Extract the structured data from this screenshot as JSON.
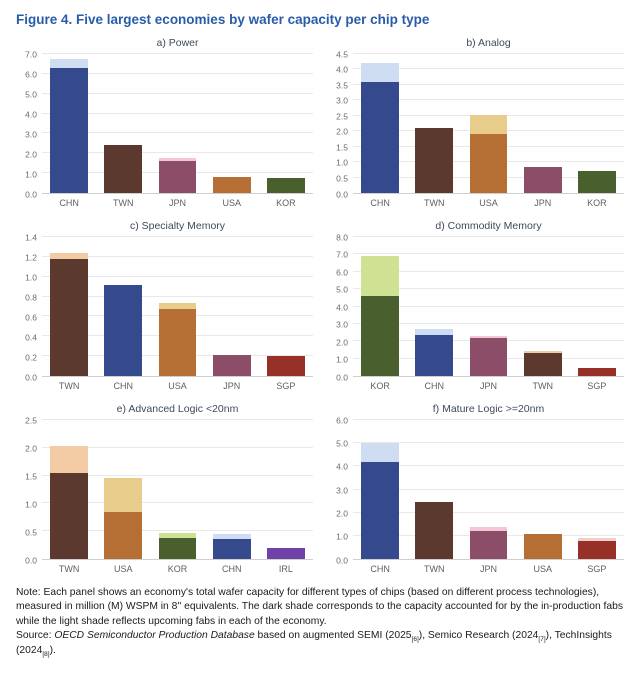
{
  "figure": {
    "title": "Figure 4. Five largest economies by wafer capacity per chip type"
  },
  "colors": {
    "title_blue": "#2a5ba9",
    "gridline": "#e9e9e9",
    "axis_text": "#6b6b6b",
    "panel_title_text": "#3f4a5a",
    "dark": {
      "CHN": "#35498d",
      "TWN": "#5c392e",
      "USA": "#b56e33",
      "JPN": "#8b4d68",
      "KOR": "#4a5f2e",
      "SGP": "#97date3128",
      "IRL": "#6e42a8"
    },
    "light": {
      "CHN": "#ceddf2",
      "TWN": "#f2cba4",
      "USA": "#e8cc8c",
      "JPN": "#f2c6d2",
      "KOR": "#cfe294",
      "SGP": "#f2cdd0",
      "IRL": "#d9ccee"
    }
  },
  "chart_data": [
    {
      "id": "a",
      "type": "bar",
      "title": "a) Power",
      "ymax": 7.0,
      "ystep": 1.0,
      "ylim": [
        0.0,
        7.0
      ],
      "grid": true,
      "categories": [
        "CHN",
        "TWN",
        "JPN",
        "USA",
        "KOR"
      ],
      "series": [
        {
          "name": "In-production fabs (dark shade)",
          "values": [
            6.3,
            2.4,
            1.6,
            0.8,
            0.75
          ]
        },
        {
          "name": "Upcoming fabs (light shade)",
          "values": [
            0.45,
            0,
            0.18,
            0,
            0
          ]
        }
      ]
    },
    {
      "id": "b",
      "type": "bar",
      "title": "b) Analog",
      "ymax": 4.5,
      "ystep": 0.5,
      "ylim": [
        0.0,
        4.5
      ],
      "grid": true,
      "categories": [
        "CHN",
        "TWN",
        "USA",
        "JPN",
        "KOR"
      ],
      "series": [
        {
          "name": "In-production fabs (dark shade)",
          "values": [
            3.6,
            2.1,
            1.9,
            0.85,
            0.7
          ]
        },
        {
          "name": "Upcoming fabs (light shade)",
          "values": [
            0.6,
            0,
            0.62,
            0,
            0
          ]
        }
      ]
    },
    {
      "id": "c",
      "type": "bar",
      "title": "c) Specialty Memory",
      "ymax": 1.4,
      "ystep": 0.2,
      "ylim": [
        0.0,
        1.4
      ],
      "grid": true,
      "categories": [
        "TWN",
        "CHN",
        "USA",
        "JPN",
        "SGP"
      ],
      "series": [
        {
          "name": "In-production fabs (dark shade)",
          "values": [
            1.18,
            0.92,
            0.67,
            0.21,
            0.2
          ]
        },
        {
          "name": "Upcoming fabs (light shade)",
          "values": [
            0.06,
            0,
            0.07,
            0,
            0
          ]
        }
      ]
    },
    {
      "id": "d",
      "type": "bar",
      "title": "d) Commodity Memory",
      "ymax": 8.0,
      "ystep": 1.0,
      "ylim": [
        0.0,
        8.0
      ],
      "grid": true,
      "categories": [
        "KOR",
        "CHN",
        "JPN",
        "TWN",
        "SGP"
      ],
      "series": [
        {
          "name": "In-production fabs (dark shade)",
          "values": [
            4.6,
            2.35,
            2.2,
            1.3,
            0.45
          ]
        },
        {
          "name": "Upcoming fabs (light shade)",
          "values": [
            2.3,
            0.35,
            0.08,
            0.12,
            0
          ]
        }
      ]
    },
    {
      "id": "e",
      "type": "bar",
      "title": "e) Advanced Logic <20nm",
      "ymax": 2.5,
      "ystep": 0.5,
      "ylim": [
        0.0,
        2.5
      ],
      "grid": true,
      "categories": [
        "TWN",
        "USA",
        "KOR",
        "CHN",
        "IRL"
      ],
      "series": [
        {
          "name": "In-production fabs (dark shade)",
          "values": [
            1.55,
            0.85,
            0.38,
            0.36,
            0.19
          ]
        },
        {
          "name": "Upcoming fabs (light shade)",
          "values": [
            0.48,
            0.6,
            0.09,
            0.09,
            0
          ]
        }
      ]
    },
    {
      "id": "f",
      "type": "bar",
      "title": "f) Mature Logic >=20nm",
      "ymax": 6.0,
      "ystep": 1.0,
      "ylim": [
        0.0,
        6.0
      ],
      "grid": true,
      "categories": [
        "CHN",
        "TWN",
        "JPN",
        "USA",
        "SGP"
      ],
      "series": [
        {
          "name": "In-production fabs (dark shade)",
          "values": [
            4.2,
            2.45,
            1.2,
            1.1,
            0.78
          ]
        },
        {
          "name": "Upcoming fabs (light shade)",
          "values": [
            0.8,
            0,
            0.2,
            0,
            0.12
          ]
        }
      ]
    }
  ],
  "note": "Note: Each panel shows an economy's total wafer capacity for different types of chips (based on different process technologies), measured in million (M) WSPM in 8'' equivalents. The dark shade corresponds to the capacity accounted for by the in-production fabs while the light shade reflects upcoming fabs in each of the economy.",
  "source": {
    "label": "Source: ",
    "italic": "OECD Semiconductor Production Database",
    "rest1": " based on augmented SEMI (2025",
    "sub1": "[6]",
    "rest2": "), Semico Research (2024",
    "sub2": "[7]",
    "rest3": "), TechInsights (2024",
    "sub3": "[8]",
    "rest4": ")."
  }
}
